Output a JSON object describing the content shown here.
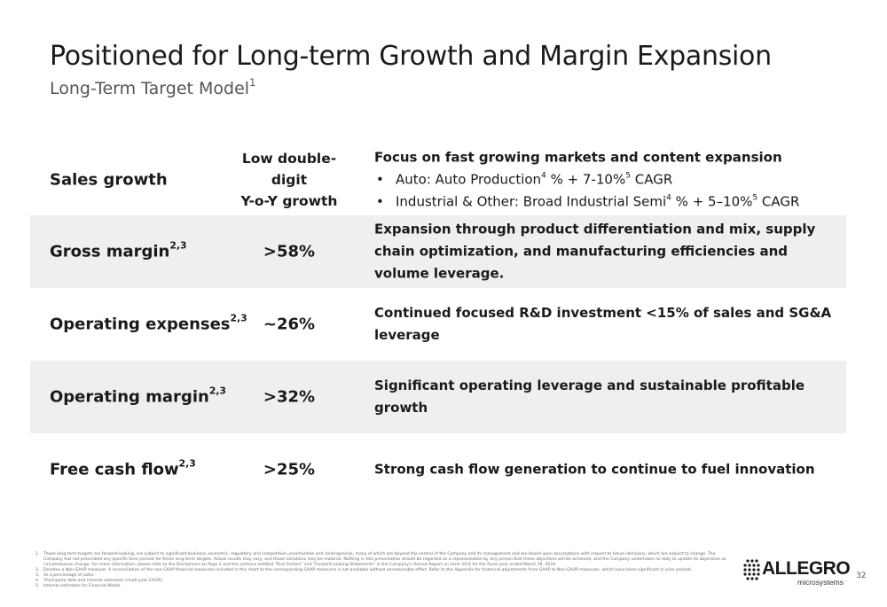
{
  "header": {
    "title": "Positioned for Long-term Growth and Margin Expansion",
    "subtitle": "Long-Term Target Model",
    "subtitle_sup": "1"
  },
  "rows": [
    {
      "metric": "Sales growth",
      "target_lines": [
        "Low double-",
        "digit",
        "Y-o-Y growth"
      ],
      "desc_lead": "Focus on fast growing markets and content expansion",
      "bullets": [
        {
          "a": "Auto: Auto Production",
          "s1": "4",
          "b": " % + 7-10%",
          "s2": "5",
          "c": " CAGR"
        },
        {
          "a": "Industrial & Other: Broad Industrial Semi",
          "s1": "4",
          "b": " % + 5–10%",
          "s2": "5",
          "c": " CAGR"
        }
      ],
      "bullet_glyph": "•"
    },
    {
      "metric": "Gross margin",
      "metric_sup": "2,3",
      "target": ">58%",
      "desc": "Expansion through product differentiation and mix, supply chain optimization, and manufacturing efficiencies and volume leverage."
    },
    {
      "metric": "Operating expenses",
      "metric_sup": "2,3",
      "target": "~26%",
      "desc": "Continued focused R&D investment <15% of sales and SG&A leverage"
    },
    {
      "metric": "Operating margin",
      "metric_sup": "2,3",
      "target": ">32%",
      "desc": "Significant operating leverage and sustainable profitable growth"
    },
    {
      "metric": "Free cash flow",
      "metric_sup": "2,3",
      "target": ">25%",
      "desc": "Strong cash flow generation to continue to fuel innovation"
    }
  ],
  "footnotes": [
    {
      "num": "1.",
      "text": "These long-term targets are forward-looking, are subject to significant business, economic, regulatory and competitive uncertainties and contingencies, many of which are beyond the control of the Company and its management and are based upon assumptions with respect to future decisions, which are subject to change. The Company has not prescribed any specific time periods for these long-term targets. Actual results may vary, and those variations may be material. Nothing in this presentation should be regarded as a representation by any person that these objectives will be achieved, and the Company undertakes no duty to update its objectives as circumstances change. For more information, please refer to the Disclaimers on Page 2 and the sections entitled \"Risk Factors\" and \"Forward Looking Statements\" in the Company's Annual Report on Form 10-K for the fiscal year ended March 29, 2024."
    },
    {
      "num": "2.",
      "text": "Denotes a Non-GAAP measure. A reconciliation of the non-GAAP financial measures included in this chart to the corresponding GAAP measures is not available without unreasonable effort. Refer to the Appendix for historical adjustments from GAAP to Non-GAAP measures, which have been significant in prior periods."
    },
    {
      "num": "3.",
      "text": "As a percentage of sales."
    },
    {
      "num": "4.",
      "text": "Third-party data and internal estimates (multi-year CAGR)."
    },
    {
      "num": "5.",
      "text": "Internal estimates for Financial Model."
    }
  ],
  "logo": {
    "word": "ALLEGRO",
    "sub": "microsystems"
  },
  "page_number": "32",
  "colors": {
    "text": "#1a1a1a",
    "subtitle": "#555555",
    "row_shade": "#efefef"
  }
}
